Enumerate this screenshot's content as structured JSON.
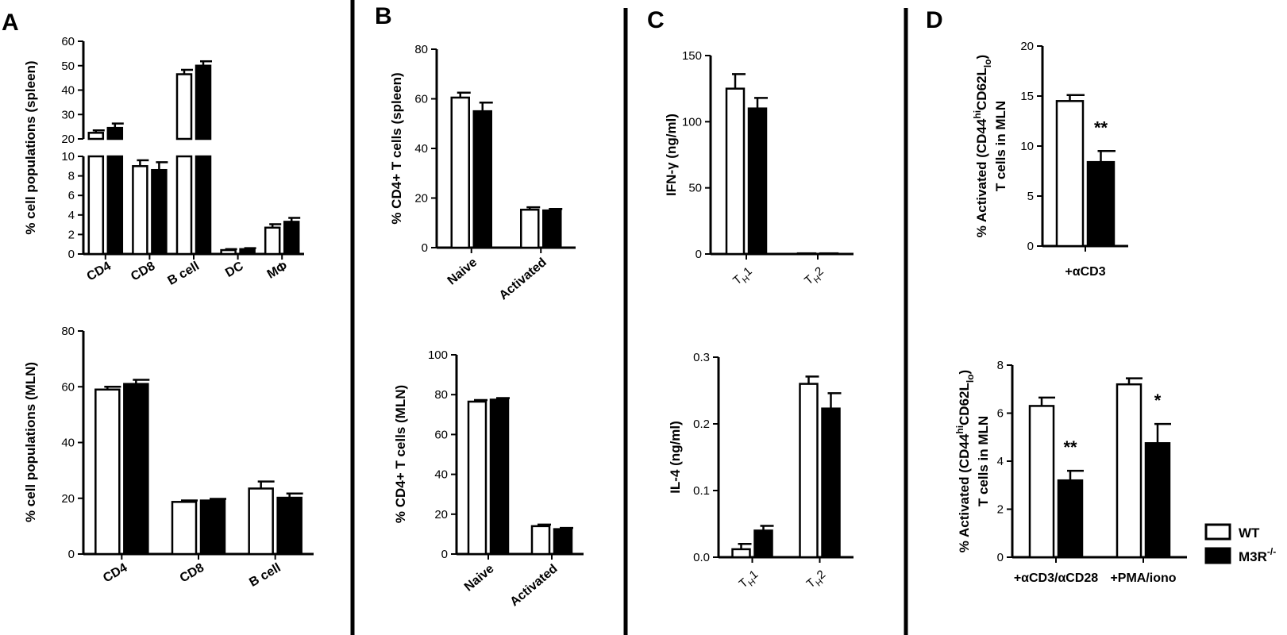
{
  "panel_letters": [
    "A",
    "B",
    "C",
    "D"
  ],
  "legend": {
    "wt_label": "WT",
    "ko_label": "M3R",
    "ko_sup": "-/-",
    "colors": {
      "wt": "#ffffff",
      "ko": "#000000"
    }
  },
  "chart_data": [
    {
      "panel": "A",
      "type": "bar",
      "ylabel": "% cell populations (spleen)",
      "categories": [
        "CD4",
        "CD8",
        "B cell",
        "DC",
        "MΦ"
      ],
      "series": [
        {
          "name": "WT",
          "values": [
            22.5,
            9.0,
            46.5,
            0.4,
            2.7
          ],
          "errors": [
            1.0,
            0.6,
            1.8,
            0.1,
            0.35
          ]
        },
        {
          "name": "M3R-/-",
          "values": [
            24.5,
            8.6,
            50.0,
            0.5,
            3.3
          ],
          "errors": [
            1.8,
            0.8,
            1.8,
            0.1,
            0.4
          ]
        }
      ],
      "broken_axis": {
        "lower_range": [
          0,
          10
        ],
        "upper_range": [
          20,
          60
        ]
      },
      "yticks_lower": [
        "0",
        "2",
        "4",
        "6",
        "8",
        "10"
      ],
      "yticks_upper": [
        "20",
        "30",
        "40",
        "50",
        "60"
      ]
    },
    {
      "panel": "A",
      "type": "bar",
      "ylabel": "% cell populations (MLN)",
      "categories": [
        "CD4",
        "CD8",
        "B cell"
      ],
      "series": [
        {
          "name": "WT",
          "values": [
            59,
            18.7,
            23.5
          ],
          "errors": [
            1.0,
            0.5,
            2.5
          ]
        },
        {
          "name": "M3R-/-",
          "values": [
            61,
            19.2,
            20.2
          ],
          "errors": [
            1.5,
            0.6,
            1.5
          ]
        }
      ],
      "ylim": [
        0,
        80
      ],
      "yticks": [
        "0",
        "20",
        "40",
        "60",
        "80"
      ]
    },
    {
      "panel": "B",
      "type": "bar",
      "ylabel": "% CD4+ T cells (spleen)",
      "categories": [
        "Naive",
        "Activated"
      ],
      "series": [
        {
          "name": "WT",
          "values": [
            60.5,
            15.3
          ],
          "errors": [
            2.0,
            1.0
          ]
        },
        {
          "name": "M3R-/-",
          "values": [
            55,
            15
          ],
          "errors": [
            3.5,
            0.6
          ]
        }
      ],
      "ylim": [
        0,
        80
      ],
      "yticks": [
        "0",
        "20",
        "40",
        "60",
        "80"
      ]
    },
    {
      "panel": "B",
      "type": "bar",
      "ylabel": "% CD4+ T cells (MLN)",
      "categories": [
        "Naive",
        "Activated"
      ],
      "series": [
        {
          "name": "WT",
          "values": [
            76.5,
            14
          ],
          "errors": [
            0.8,
            0.8
          ]
        },
        {
          "name": "M3R-/-",
          "values": [
            77.5,
            12.5
          ],
          "errors": [
            0.8,
            0.6
          ]
        }
      ],
      "ylim": [
        0,
        100
      ],
      "yticks": [
        "0",
        "20",
        "40",
        "60",
        "80",
        "100"
      ]
    },
    {
      "panel": "C",
      "type": "bar",
      "ylabel": "IFN-γ (ng/ml)",
      "categories": [
        "TH1",
        "TH2"
      ],
      "category_labels": [
        {
          "main": "T",
          "sub": "H",
          "tail": "1"
        },
        {
          "main": "T",
          "sub": "H",
          "tail": "2"
        }
      ],
      "series": [
        {
          "name": "WT",
          "values": [
            125,
            0.5
          ],
          "errors": [
            11,
            0
          ]
        },
        {
          "name": "M3R-/-",
          "values": [
            110,
            0.5
          ],
          "errors": [
            8,
            0
          ]
        }
      ],
      "ylim": [
        0,
        150
      ],
      "yticks": [
        "0",
        "50",
        "100",
        "150"
      ]
    },
    {
      "panel": "C",
      "type": "bar",
      "ylabel": "IL-4 (ng/ml)",
      "categories": [
        "TH1",
        "TH2"
      ],
      "category_labels": [
        {
          "main": "T",
          "sub": "H",
          "tail": "1"
        },
        {
          "main": "T",
          "sub": "H",
          "tail": "2"
        }
      ],
      "series": [
        {
          "name": "WT",
          "values": [
            0.012,
            0.26
          ],
          "errors": [
            0.008,
            0.011
          ]
        },
        {
          "name": "M3R-/-",
          "values": [
            0.04,
            0.223
          ],
          "errors": [
            0.007,
            0.023
          ]
        }
      ],
      "ylim": [
        0,
        0.3
      ],
      "yticks": [
        "0.0",
        "0.1",
        "0.2",
        "0.3"
      ]
    },
    {
      "panel": "D",
      "type": "bar",
      "ylabel_line1": {
        "pre": "% Activated (CD44",
        "sup": "hi",
        "mid": "CD62L",
        "sub": "lo",
        "post": ")"
      },
      "ylabel_line2": "T cells in MLN",
      "categories": [
        "+αCD3"
      ],
      "series": [
        {
          "name": "WT",
          "values": [
            14.5
          ],
          "errors": [
            0.6
          ]
        },
        {
          "name": "M3R-/-",
          "values": [
            8.4
          ],
          "errors": [
            1.1
          ]
        }
      ],
      "annotations": [
        "**"
      ],
      "ylim": [
        0,
        20
      ],
      "yticks": [
        "0",
        "5",
        "10",
        "15",
        "20"
      ]
    },
    {
      "panel": "D",
      "type": "bar",
      "ylabel_line1": {
        "pre": "% Activated (CD44",
        "sup": "hi",
        "mid": "CD62L",
        "sub": "lo",
        "post": ")"
      },
      "ylabel_line2": "T cells in MLN",
      "categories": [
        "+αCD3/αCD28",
        "+PMA/iono"
      ],
      "series": [
        {
          "name": "WT",
          "values": [
            6.3,
            7.2
          ],
          "errors": [
            0.35,
            0.25
          ]
        },
        {
          "name": "M3R-/-",
          "values": [
            3.2,
            4.75
          ],
          "errors": [
            0.4,
            0.8
          ]
        }
      ],
      "annotations": [
        "**",
        "*"
      ],
      "ylim": [
        0,
        8
      ],
      "yticks": [
        "0",
        "2",
        "4",
        "6",
        "8"
      ]
    }
  ]
}
